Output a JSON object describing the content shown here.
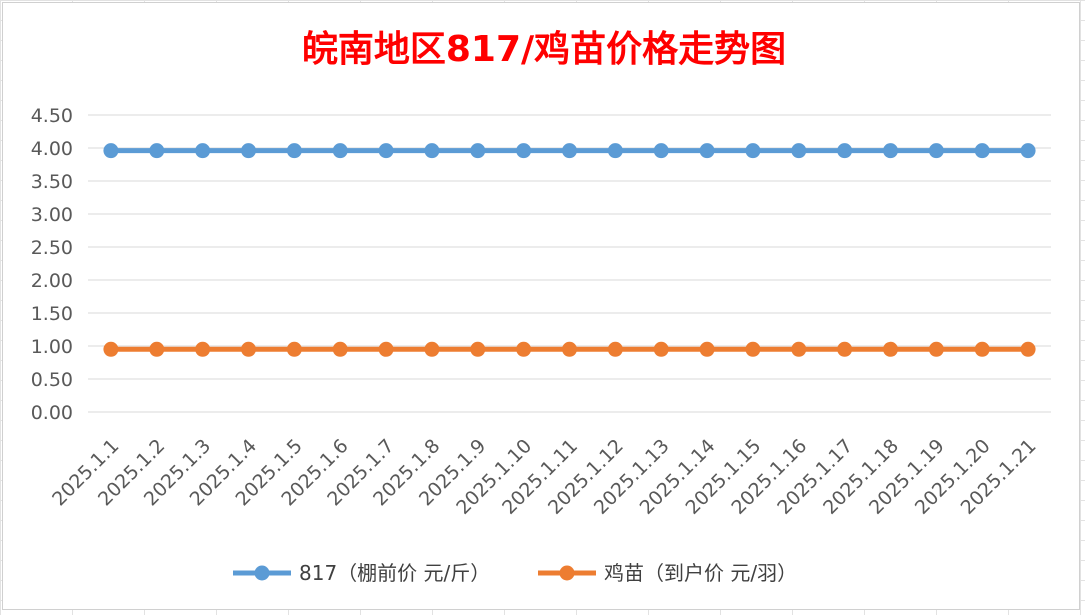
{
  "chart_data": {
    "type": "line",
    "title": "皖南地区817/鸡苗价格走势图",
    "title_color": "#ff0000",
    "xlabel": "",
    "ylabel": "",
    "categories": [
      "2025.1.1",
      "2025.1.2",
      "2025.1.3",
      "2025.1.4",
      "2025.1.5",
      "2025.1.6",
      "2025.1.7",
      "2025.1.8",
      "2025.1.9",
      "2025.1.10",
      "2025.1.11",
      "2025.1.12",
      "2025.1.13",
      "2025.1.14",
      "2025.1.15",
      "2025.1.16",
      "2025.1.17",
      "2025.1.18",
      "2025.1.19",
      "2025.1.20",
      "2025.1.21"
    ],
    "y_ticks": [
      "0.00",
      "0.50",
      "1.00",
      "1.50",
      "2.00",
      "2.50",
      "3.00",
      "3.50",
      "4.00",
      "4.50"
    ],
    "ylim": [
      0,
      4.5
    ],
    "grid": true,
    "legend_position": "bottom",
    "series": [
      {
        "name": "817（棚前价 元/斤）",
        "color": "#5b9bd5",
        "values": [
          3.96,
          3.96,
          3.96,
          3.96,
          3.96,
          3.96,
          3.96,
          3.96,
          3.96,
          3.96,
          3.96,
          3.96,
          3.96,
          3.96,
          3.96,
          3.96,
          3.96,
          3.96,
          3.96,
          3.96,
          3.96
        ]
      },
      {
        "name": "鸡苗（到户价 元/羽）",
        "color": "#ed7d31",
        "values": [
          0.95,
          0.95,
          0.95,
          0.95,
          0.95,
          0.95,
          0.95,
          0.95,
          0.95,
          0.95,
          0.95,
          0.95,
          0.95,
          0.95,
          0.95,
          0.95,
          0.95,
          0.95,
          0.95,
          0.95,
          0.95
        ]
      }
    ]
  }
}
